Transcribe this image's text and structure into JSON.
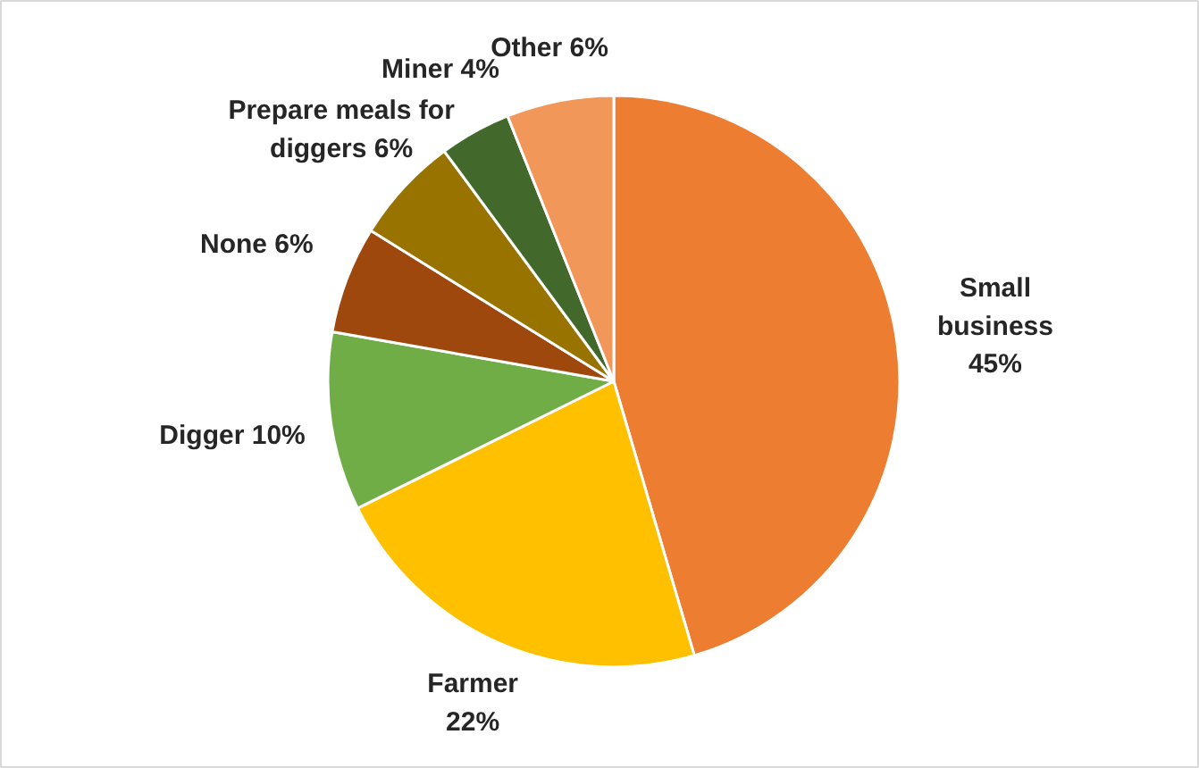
{
  "chart_data": {
    "type": "pie",
    "categories": [
      "Small business",
      "Farmer",
      "Digger",
      "None",
      "Prepare meals for diggers",
      "Miner",
      "Other"
    ],
    "values": [
      45,
      22,
      10,
      6,
      6,
      4,
      6
    ],
    "value_labels": [
      "45%",
      "22%",
      "10%",
      "6%",
      "6%",
      "4%",
      "6%"
    ],
    "colors": [
      "#ed7d31",
      "#ffc000",
      "#70ad47",
      "#9e480e",
      "#997300",
      "#43682b",
      "#f1975a"
    ],
    "data_labels": true
  }
}
